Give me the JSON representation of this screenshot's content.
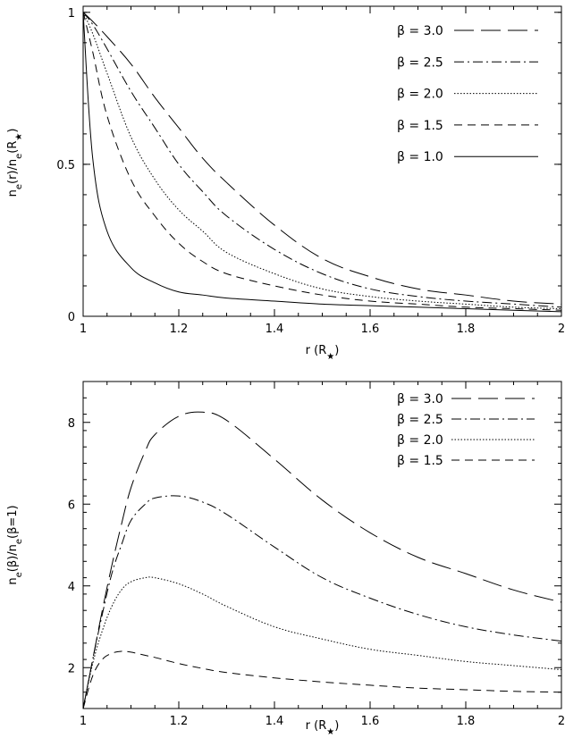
{
  "chart_data": [
    {
      "type": "line",
      "xlabel": "r (R★)",
      "ylabel": "n_e(r)/n_e(R★)",
      "xlim": [
        1,
        2
      ],
      "ylim": [
        0,
        1.02
      ],
      "x_ticks": [
        "1",
        "1.2",
        "1.4",
        "1.6",
        "1.8",
        "2"
      ],
      "y_ticks": [
        "0",
        "0.5",
        "1"
      ],
      "legend": "top-right",
      "grid": false,
      "x": [
        1.0,
        1.02,
        1.05,
        1.1,
        1.15,
        1.2,
        1.25,
        1.3,
        1.4,
        1.5,
        1.6,
        1.7,
        1.8,
        1.9,
        2.0
      ],
      "series": [
        {
          "name": "β = 3.0",
          "dash": "long-dash",
          "values": [
            1.0,
            0.97,
            0.92,
            0.83,
            0.72,
            0.62,
            0.52,
            0.44,
            0.3,
            0.19,
            0.13,
            0.09,
            0.07,
            0.05,
            0.04
          ]
        },
        {
          "name": "β = 2.5",
          "dash": "dash-dot",
          "values": [
            1.0,
            0.96,
            0.88,
            0.74,
            0.62,
            0.5,
            0.41,
            0.33,
            0.22,
            0.14,
            0.09,
            0.065,
            0.05,
            0.04,
            0.03
          ]
        },
        {
          "name": "β = 2.0",
          "dash": "dotted",
          "values": [
            1.0,
            0.93,
            0.8,
            0.59,
            0.45,
            0.35,
            0.28,
            0.21,
            0.14,
            0.09,
            0.065,
            0.05,
            0.04,
            0.03,
            0.025
          ]
        },
        {
          "name": "β = 1.5",
          "dash": "short-dash",
          "values": [
            1.0,
            0.87,
            0.66,
            0.45,
            0.33,
            0.24,
            0.18,
            0.14,
            0.1,
            0.07,
            0.05,
            0.04,
            0.03,
            0.025,
            0.02
          ]
        },
        {
          "name": "β = 1.0",
          "dash": "solid",
          "values": [
            1.0,
            0.52,
            0.28,
            0.16,
            0.11,
            0.08,
            0.07,
            0.06,
            0.05,
            0.04,
            0.035,
            0.03,
            0.025,
            0.02,
            0.015
          ]
        }
      ]
    },
    {
      "type": "line",
      "xlabel": "r (R★)",
      "ylabel": "n_e(β)/n_e(β=1)",
      "xlim": [
        1,
        2
      ],
      "ylim": [
        1,
        9
      ],
      "x_ticks": [
        "1",
        "1.2",
        "1.4",
        "1.6",
        "1.8",
        "2"
      ],
      "y_ticks": [
        "2",
        "4",
        "6",
        "8"
      ],
      "legend": "top-right",
      "grid": false,
      "x": [
        1.0,
        1.02,
        1.04,
        1.06,
        1.08,
        1.1,
        1.13,
        1.15,
        1.2,
        1.25,
        1.3,
        1.4,
        1.5,
        1.6,
        1.7,
        1.8,
        1.9,
        2.0
      ],
      "series": [
        {
          "name": "β = 3.0",
          "dash": "long-dash",
          "values": [
            1.0,
            2.2,
            3.4,
            4.5,
            5.5,
            6.4,
            7.3,
            7.7,
            8.15,
            8.25,
            8.05,
            7.1,
            6.1,
            5.3,
            4.7,
            4.3,
            3.9,
            3.6
          ]
        },
        {
          "name": "β = 2.5",
          "dash": "dash-dot",
          "values": [
            1.0,
            2.2,
            3.3,
            4.3,
            5.0,
            5.6,
            6.0,
            6.15,
            6.2,
            6.05,
            5.75,
            4.95,
            4.2,
            3.7,
            3.3,
            3.0,
            2.8,
            2.65
          ]
        },
        {
          "name": "β = 2.0",
          "dash": "dotted",
          "values": [
            1.0,
            2.1,
            2.9,
            3.5,
            3.9,
            4.1,
            4.2,
            4.2,
            4.05,
            3.8,
            3.5,
            3.0,
            2.7,
            2.45,
            2.3,
            2.15,
            2.05,
            1.95
          ]
        },
        {
          "name": "β = 1.5",
          "dash": "short-dash",
          "values": [
            1.0,
            1.8,
            2.2,
            2.35,
            2.4,
            2.38,
            2.3,
            2.25,
            2.1,
            1.98,
            1.88,
            1.75,
            1.65,
            1.57,
            1.5,
            1.46,
            1.42,
            1.4
          ]
        }
      ]
    }
  ]
}
